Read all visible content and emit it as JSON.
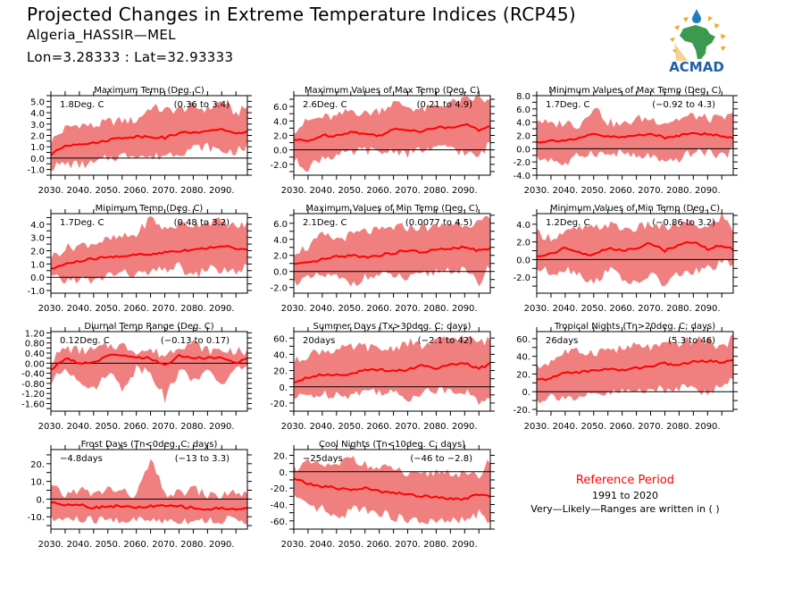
{
  "header": {
    "title": "Projected Changes in Extreme Temperature Indices (RCP45)",
    "station": "Algeria_HASSIR—MEL",
    "coords": "Lon=3.28333 : Lat=32.93333"
  },
  "logo": {
    "text": "ACMAD",
    "icon": "acmad-africa-logo-icon"
  },
  "reference": {
    "title": "Reference Period",
    "years": "1991 to 2020",
    "note": "Very—Likely—Ranges are written in ( )"
  },
  "colors": {
    "band": "#f08080",
    "line": "#ff0000",
    "axis": "#000000",
    "ref_title": "#ff0000"
  },
  "chart_data": [
    {
      "type": "area",
      "title": "Maximum Temp (Deg. C)",
      "mean_label": "1.8Deg. C",
      "range_label": "(0.36 to 3.4)",
      "x_ticks": [
        "2030.",
        "2040.",
        "2050.",
        "2060.",
        "2070.",
        "2080.",
        "2090."
      ],
      "xlim": [
        2030,
        2099
      ],
      "ylim": [
        -1.5,
        5.5
      ],
      "y_ticks": [
        -1.0,
        0.0,
        1.0,
        2.0,
        3.0,
        4.0,
        5.0
      ],
      "y_tick_labels": [
        "-1.0",
        "0.0",
        "1.0",
        "2.0",
        "3.0",
        "4.0",
        "5.0"
      ],
      "x": [
        2030,
        2035,
        2040,
        2045,
        2050,
        2055,
        2060,
        2065,
        2070,
        2075,
        2080,
        2085,
        2090,
        2095,
        2099
      ],
      "mean": [
        0.3,
        1.1,
        1.3,
        1.3,
        1.6,
        1.8,
        1.9,
        1.9,
        1.8,
        2.2,
        2.3,
        2.3,
        2.6,
        2.1,
        2.4
      ],
      "upper": [
        1.5,
        2.6,
        3.0,
        2.8,
        3.2,
        3.3,
        3.3,
        4.5,
        4.2,
        4.3,
        4.5,
        4.3,
        5.0,
        3.9,
        4.5
      ],
      "lower": [
        -0.8,
        -0.5,
        -0.6,
        -0.5,
        0.0,
        0.2,
        0.4,
        0.0,
        0.3,
        0.5,
        0.9,
        1.0,
        0.6,
        0.6,
        1.0
      ]
    },
    {
      "type": "area",
      "title": "Maximum Values of Max Temp (Deg. C)",
      "mean_label": "2.6Deg. C",
      "range_label": "(0.21 to 4.9)",
      "x_ticks": [
        "2030.",
        "2040.",
        "2050.",
        "2060.",
        "2070.",
        "2080.",
        "2090."
      ],
      "xlim": [
        2030,
        2099
      ],
      "ylim": [
        -3.5,
        7.5
      ],
      "y_ticks": [
        -2.0,
        0.0,
        2.0,
        4.0,
        6.0
      ],
      "y_tick_labels": [
        "-2.0",
        "0.0",
        "2.0",
        "4.0",
        "6.0"
      ],
      "x": [
        2030,
        2035,
        2040,
        2045,
        2050,
        2055,
        2060,
        2065,
        2070,
        2075,
        2080,
        2085,
        2090,
        2095,
        2099
      ],
      "mean": [
        1.4,
        1.2,
        2.0,
        2.0,
        2.5,
        2.2,
        2.0,
        2.8,
        2.8,
        2.6,
        3.1,
        3.1,
        3.6,
        2.7,
        3.4
      ],
      "upper": [
        2.8,
        4.0,
        4.5,
        4.5,
        5.5,
        5.0,
        5.5,
        6.5,
        6.0,
        5.5,
        6.0,
        6.5,
        6.8,
        7.2,
        6.5
      ],
      "lower": [
        -1.5,
        -2.5,
        -1.0,
        -0.8,
        -0.5,
        0.0,
        -0.5,
        0.0,
        -0.5,
        0.0,
        0.0,
        0.5,
        -0.5,
        -1.0,
        1.0
      ]
    },
    {
      "type": "area",
      "title": "Minimum Values of Max Temp (Deg. C)",
      "mean_label": "1.7Deg. C",
      "range_label": "(−0.92 to 4.3)",
      "x_ticks": [
        "2030.",
        "2040.",
        "2050.",
        "2060.",
        "2070.",
        "2080.",
        "2090."
      ],
      "xlim": [
        2030,
        2099
      ],
      "ylim": [
        -4.0,
        8.0
      ],
      "y_ticks": [
        -4.0,
        -2.0,
        0.0,
        2.0,
        4.0,
        6.0,
        8.0
      ],
      "y_tick_labels": [
        "-4.0",
        "-2.0",
        "0.0",
        "2.0",
        "4.0",
        "6.0",
        "8.0"
      ],
      "x": [
        2030,
        2035,
        2040,
        2045,
        2050,
        2055,
        2060,
        2065,
        2070,
        2075,
        2080,
        2085,
        2090,
        2095,
        2099
      ],
      "mean": [
        1.0,
        1.2,
        1.3,
        1.5,
        2.2,
        1.8,
        1.7,
        2.0,
        2.3,
        1.6,
        2.0,
        2.5,
        2.1,
        2.0,
        1.6
      ],
      "upper": [
        4.5,
        3.5,
        4.0,
        3.5,
        6.5,
        4.0,
        3.5,
        4.5,
        4.5,
        4.0,
        4.5,
        5.0,
        4.5,
        4.5,
        5.0
      ],
      "lower": [
        -1.5,
        -1.5,
        -2.5,
        -1.0,
        -0.5,
        -1.0,
        -0.5,
        -1.5,
        -1.0,
        -2.5,
        -1.5,
        -0.5,
        -0.5,
        -1.0,
        -0.5
      ]
    },
    {
      "type": "area",
      "title": "Minimum Temp (Deg. C)",
      "mean_label": "1.7Deg. C",
      "range_label": "(0.48 to 3.2)",
      "x_ticks": [
        "2030.",
        "2040.",
        "2050.",
        "2060.",
        "2070.",
        "2080.",
        "2090."
      ],
      "xlim": [
        2030,
        2099
      ],
      "ylim": [
        -1.2,
        4.8
      ],
      "y_ticks": [
        -1.0,
        0.0,
        1.0,
        2.0,
        3.0,
        4.0
      ],
      "y_tick_labels": [
        "-1.0",
        "0.0",
        "1.0",
        "2.0",
        "3.0",
        "4.0"
      ],
      "x": [
        2030,
        2035,
        2040,
        2045,
        2050,
        2055,
        2060,
        2065,
        2070,
        2075,
        2080,
        2085,
        2090,
        2095,
        2099
      ],
      "mean": [
        0.6,
        1.0,
        1.2,
        1.4,
        1.5,
        1.6,
        1.7,
        1.7,
        1.9,
        2.0,
        2.1,
        2.2,
        2.4,
        2.1,
        2.2
      ],
      "upper": [
        1.5,
        2.2,
        2.4,
        2.6,
        2.8,
        3.0,
        3.2,
        4.5,
        3.6,
        4.0,
        4.0,
        4.2,
        4.2,
        3.8,
        4.0
      ],
      "lower": [
        0.0,
        -0.3,
        -0.1,
        -0.4,
        0.2,
        0.3,
        0.2,
        0.3,
        0.6,
        0.8,
        0.0,
        0.7,
        0.5,
        0.4,
        0.8
      ]
    },
    {
      "type": "area",
      "title": "Maximum Values of Min Temp (Deg. C)",
      "mean_label": "2.1Deg. C",
      "range_label": "(0.0077 to 4.5)",
      "x_ticks": [
        "2030.",
        "2040.",
        "2050.",
        "2060.",
        "2070.",
        "2080.",
        "2090."
      ],
      "xlim": [
        2030,
        2099
      ],
      "ylim": [
        -2.7,
        7.2
      ],
      "y_ticks": [
        -2.0,
        0.0,
        2.0,
        4.0,
        6.0
      ],
      "y_tick_labels": [
        "-2.0",
        "0.0",
        "2.0",
        "4.0",
        "6.0"
      ],
      "x": [
        2030,
        2035,
        2040,
        2045,
        2050,
        2055,
        2060,
        2065,
        2070,
        2075,
        2080,
        2085,
        2090,
        2095,
        2099
      ],
      "mean": [
        0.9,
        1.0,
        1.5,
        1.8,
        2.0,
        1.8,
        2.0,
        2.3,
        2.6,
        2.4,
        2.7,
        2.8,
        3.0,
        2.6,
        2.8
      ],
      "upper": [
        2.5,
        3.0,
        4.5,
        4.0,
        4.5,
        5.0,
        5.0,
        5.5,
        5.5,
        5.5,
        5.5,
        6.0,
        6.0,
        6.0,
        6.5
      ],
      "lower": [
        -1.2,
        -1.0,
        -0.5,
        -0.8,
        -1.5,
        -0.8,
        -0.5,
        -0.5,
        -1.0,
        -0.5,
        0.0,
        0.3,
        0.0,
        -1.5,
        0.8
      ]
    },
    {
      "type": "area",
      "title": "Minimum Values of Min Temp (Deg. C)",
      "mean_label": "1.2Deg. C",
      "range_label": "(−0.86 to 3.2)",
      "x_ticks": [
        "2030.",
        "2040.",
        "2050.",
        "2060.",
        "2070.",
        "2080.",
        "2090."
      ],
      "xlim": [
        2030,
        2099
      ],
      "ylim": [
        -3.8,
        5.2
      ],
      "y_ticks": [
        -2.0,
        0.0,
        2.0,
        4.0
      ],
      "y_tick_labels": [
        "-2.0",
        "0.0",
        "2.0",
        "4.0"
      ],
      "x": [
        2030,
        2035,
        2040,
        2045,
        2050,
        2055,
        2060,
        2065,
        2070,
        2075,
        2080,
        2085,
        2090,
        2095,
        2099
      ],
      "mean": [
        0.3,
        0.7,
        1.3,
        0.8,
        0.5,
        1.3,
        1.0,
        1.2,
        1.9,
        1.0,
        1.7,
        2.0,
        1.2,
        1.6,
        1.2
      ],
      "upper": [
        3.0,
        2.5,
        3.0,
        3.5,
        3.5,
        4.0,
        3.5,
        3.5,
        4.0,
        3.5,
        4.0,
        4.0,
        3.5,
        5.0,
        3.3
      ],
      "lower": [
        -1.0,
        -1.5,
        -1.0,
        -1.5,
        -2.8,
        -1.0,
        -2.0,
        -3.0,
        -1.5,
        -3.0,
        -1.5,
        -1.5,
        -1.0,
        -0.5,
        -0.6
      ]
    },
    {
      "type": "area",
      "title": "Diurnal Temp Range (Deg. C)",
      "mean_label": "0.12Deg. C",
      "range_label": "(−0.13 to 0.17)",
      "x_ticks": [
        "2030.",
        "2040.",
        "2050.",
        "2060.",
        "2070.",
        "2080.",
        "2090."
      ],
      "xlim": [
        2030,
        2099
      ],
      "ylim": [
        -1.9,
        1.25
      ],
      "y_ticks": [
        -1.6,
        -1.2,
        -0.8,
        -0.4,
        0.0,
        0.4,
        0.8,
        1.2
      ],
      "y_tick_labels": [
        "-1.60",
        "-1.20",
        "-0.80",
        "-0.40",
        "0.00",
        "0.40",
        "0.80",
        "1.20"
      ],
      "x": [
        2030,
        2035,
        2040,
        2045,
        2050,
        2055,
        2060,
        2065,
        2070,
        2075,
        2080,
        2085,
        2090,
        2095,
        2099
      ],
      "mean": [
        -0.3,
        0.2,
        0.0,
        0.0,
        0.3,
        0.3,
        0.2,
        0.2,
        -0.1,
        0.3,
        0.2,
        0.2,
        0.2,
        0.0,
        0.2
      ],
      "upper": [
        0.1,
        0.6,
        0.5,
        0.5,
        0.7,
        0.7,
        0.5,
        0.5,
        0.3,
        0.7,
        0.8,
        0.5,
        0.5,
        0.5,
        0.4
      ],
      "lower": [
        -0.8,
        -0.2,
        -0.6,
        -1.1,
        -0.3,
        -1.0,
        -0.2,
        -0.3,
        -1.4,
        -0.3,
        -0.6,
        -0.4,
        -0.8,
        -0.3,
        0.0
      ]
    },
    {
      "type": "area",
      "title": "Summer Days (Tx>30deg. C; days)",
      "mean_label": "20days",
      "range_label": "(−2.1 to 42)",
      "x_ticks": [
        "2030.",
        "2040.",
        "2050.",
        "2060.",
        "2070.",
        "2080.",
        "2090."
      ],
      "xlim": [
        2030,
        2099
      ],
      "ylim": [
        -30,
        68
      ],
      "y_ticks": [
        -20,
        0,
        20,
        40,
        60
      ],
      "y_tick_labels": [
        "-20.",
        "0.",
        "20.",
        "40.",
        "60."
      ],
      "x": [
        2030,
        2035,
        2040,
        2045,
        2050,
        2055,
        2060,
        2065,
        2070,
        2075,
        2080,
        2085,
        2090,
        2095,
        2099
      ],
      "mean": [
        6,
        12,
        15,
        15,
        16,
        20,
        21,
        20,
        21,
        27,
        23,
        27,
        29,
        22,
        29
      ],
      "upper": [
        30,
        40,
        45,
        45,
        48,
        50,
        45,
        48,
        55,
        50,
        55,
        60,
        60,
        55,
        57
      ],
      "lower": [
        -15,
        -10,
        -10,
        -8,
        -10,
        -5,
        -5,
        -8,
        -15,
        -5,
        -5,
        -3,
        -5,
        -20,
        -10
      ]
    },
    {
      "type": "area",
      "title": "Tropical Nights (Tn>20deg. C; days)",
      "mean_label": "26days",
      "range_label": "(5.3 to 46)",
      "x_ticks": [
        "2030.",
        "2040.",
        "2050.",
        "2060.",
        "2070.",
        "2080.",
        "2090."
      ],
      "xlim": [
        2030,
        2099
      ],
      "ylim": [
        -22,
        68
      ],
      "y_ticks": [
        -20,
        0,
        20,
        40,
        60
      ],
      "y_tick_labels": [
        "-20.",
        "0.",
        "20.",
        "40.",
        "60."
      ],
      "x": [
        2030,
        2035,
        2040,
        2045,
        2050,
        2055,
        2060,
        2065,
        2070,
        2075,
        2080,
        2085,
        2090,
        2095,
        2099
      ],
      "mean": [
        13,
        15,
        22,
        22,
        24,
        26,
        24,
        27,
        29,
        32,
        30,
        34,
        35,
        33,
        37
      ],
      "upper": [
        27,
        35,
        45,
        45,
        45,
        48,
        48,
        52,
        50,
        52,
        55,
        58,
        58,
        50,
        60
      ],
      "lower": [
        -10,
        -5,
        -5,
        -10,
        -3,
        -3,
        0,
        0,
        5,
        0,
        5,
        10,
        -5,
        10,
        15
      ]
    },
    {
      "type": "area",
      "title": "Frost Days (Tn<0deg. C; days)",
      "mean_label": "−4.8days",
      "range_label": "(−13 to 3.3)",
      "x_ticks": [
        "2030.",
        "2040.",
        "2050.",
        "2060.",
        "2070.",
        "2080.",
        "2090."
      ],
      "xlim": [
        2030,
        2099
      ],
      "ylim": [
        -17,
        28
      ],
      "y_ticks": [
        -10,
        0,
        10,
        20
      ],
      "y_tick_labels": [
        "-10.",
        "0.",
        "10.",
        "20."
      ],
      "x": [
        2030,
        2035,
        2040,
        2045,
        2050,
        2055,
        2060,
        2065,
        2070,
        2075,
        2080,
        2085,
        2090,
        2095,
        2099
      ],
      "mean": [
        -2,
        -3,
        -3,
        -5,
        -4,
        -4,
        -5,
        -4,
        -4,
        -4,
        -5,
        -6,
        -5,
        -6,
        -5
      ],
      "upper": [
        7,
        2,
        6,
        2,
        6,
        4,
        2,
        22,
        3,
        3,
        6,
        2,
        2,
        4,
        2
      ],
      "lower": [
        -12,
        -11,
        -12,
        -12,
        -12,
        -12,
        -12,
        -12,
        -12,
        -12,
        -12,
        -12,
        -12,
        -12,
        -12
      ]
    },
    {
      "type": "area",
      "title": "Cool Nights (Tn<10deg. C; days)",
      "mean_label": "−25days",
      "range_label": "(−46 to −2.8)",
      "x_ticks": [
        "2030.",
        "2040.",
        "2050.",
        "2060.",
        "2070.",
        "2080.",
        "2090."
      ],
      "xlim": [
        2030,
        2099
      ],
      "ylim": [
        -70,
        27
      ],
      "y_ticks": [
        -60,
        -40,
        -20,
        0,
        20
      ],
      "y_tick_labels": [
        "-60.",
        "-40.",
        "-20.",
        "0.",
        "20."
      ],
      "x": [
        2030,
        2035,
        2040,
        2045,
        2050,
        2055,
        2060,
        2065,
        2070,
        2075,
        2080,
        2085,
        2090,
        2095,
        2099
      ],
      "mean": [
        -8,
        -15,
        -18,
        -20,
        -22,
        -20,
        -24,
        -25,
        -28,
        -30,
        -30,
        -33,
        -33,
        -28,
        -30
      ],
      "upper": [
        5,
        10,
        8,
        5,
        20,
        8,
        3,
        5,
        -5,
        -5,
        0,
        0,
        -5,
        -5,
        15
      ],
      "lower": [
        -30,
        -45,
        -45,
        -60,
        -45,
        -45,
        -50,
        -55,
        -60,
        -60,
        -62,
        -60,
        -60,
        -50,
        -65
      ]
    }
  ]
}
